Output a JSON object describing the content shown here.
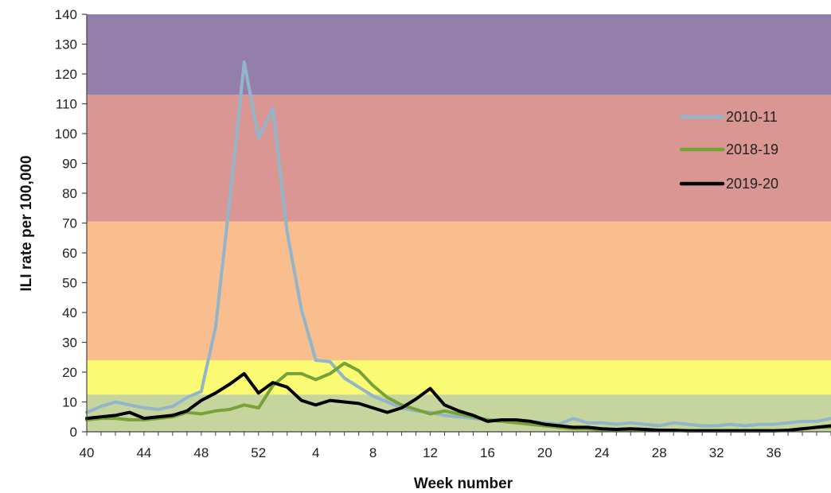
{
  "chart_data": {
    "type": "line",
    "title": "",
    "xlabel": "Week number",
    "ylabel": "ILI rate per 100,000",
    "ylim": [
      0,
      140
    ],
    "yticks": [
      0,
      10,
      20,
      30,
      40,
      50,
      60,
      70,
      80,
      90,
      100,
      110,
      120,
      130,
      140
    ],
    "x": [
      40,
      41,
      42,
      43,
      44,
      45,
      46,
      47,
      48,
      49,
      50,
      51,
      52,
      53,
      1,
      2,
      3,
      4,
      5,
      6,
      7,
      8,
      9,
      10,
      11,
      12,
      13,
      14,
      15,
      16,
      17,
      18,
      19,
      20,
      21,
      22,
      23,
      24,
      25,
      26,
      27,
      28,
      29,
      30,
      31,
      32,
      33,
      34,
      35,
      36,
      37,
      38,
      39
    ],
    "x_tick_labels": [
      "40",
      "44",
      "48",
      "52",
      "4",
      "8",
      "12",
      "16",
      "20",
      "24",
      "28",
      "32",
      "36"
    ],
    "grid": false,
    "legend_position": "upper-right",
    "bands": [
      {
        "from": 0,
        "to": 12.5,
        "color": "#c6d59e"
      },
      {
        "from": 12.5,
        "to": 24,
        "color": "#fafa73"
      },
      {
        "from": 24,
        "to": 70.5,
        "color": "#f8be8d"
      },
      {
        "from": 70.5,
        "to": 113,
        "color": "#da9693"
      },
      {
        "from": 113,
        "to": 140,
        "color": "#937fa9"
      }
    ],
    "series": [
      {
        "name": "2010-11",
        "color": "#93b5c9",
        "values": [
          6.5,
          8.5,
          10,
          9,
          8,
          7.5,
          8.5,
          11.5,
          13.5,
          35,
          78,
          124,
          98.5,
          108.5,
          67,
          41,
          24,
          23.5,
          18,
          15,
          12,
          10,
          8,
          7,
          6.5,
          5.5,
          5,
          4.5,
          4,
          4,
          3.5,
          3.5,
          3,
          2.5,
          4.5,
          3,
          3,
          2.5,
          3,
          2.5,
          2,
          3,
          2.5,
          2,
          2,
          2.5,
          2,
          2.5,
          2.5,
          3,
          3.5,
          3.5,
          4.5
        ]
      },
      {
        "name": "2018-19",
        "color": "#77a23a",
        "values": [
          4,
          4.5,
          4.5,
          4,
          4,
          4.5,
          5,
          6.5,
          6,
          7,
          7.5,
          9,
          8,
          15.5,
          19.5,
          19.5,
          17.5,
          19.5,
          23,
          20.5,
          15.5,
          11.5,
          9,
          7.5,
          6,
          7,
          6,
          5,
          4,
          3.5,
          3,
          2.5,
          2,
          1.5,
          1,
          1,
          0.5,
          0.5,
          0.5,
          0.5,
          0.5,
          0.5,
          0.5,
          0.5,
          0.5,
          0.5,
          0.5,
          0.5,
          0.5,
          0.5,
          1,
          1.5,
          1.5
        ]
      },
      {
        "name": "2019-20",
        "color": "#000000",
        "values": [
          4.5,
          5,
          5.5,
          6.5,
          4.5,
          5,
          5.5,
          7,
          10.5,
          13,
          16,
          19.5,
          13,
          16.5,
          15,
          10.5,
          9,
          10.5,
          10,
          9.5,
          8,
          6.5,
          8,
          11,
          14.5,
          9,
          7,
          5.5,
          3.5,
          4,
          4,
          3.5,
          2.5,
          2,
          1.5,
          1.5,
          1,
          0.8,
          1,
          0.8,
          0.5,
          0.5,
          0.3,
          0.3,
          0.3,
          0.3,
          0.3,
          0.3,
          0.3,
          0.5,
          1,
          1.5,
          2
        ]
      }
    ]
  }
}
